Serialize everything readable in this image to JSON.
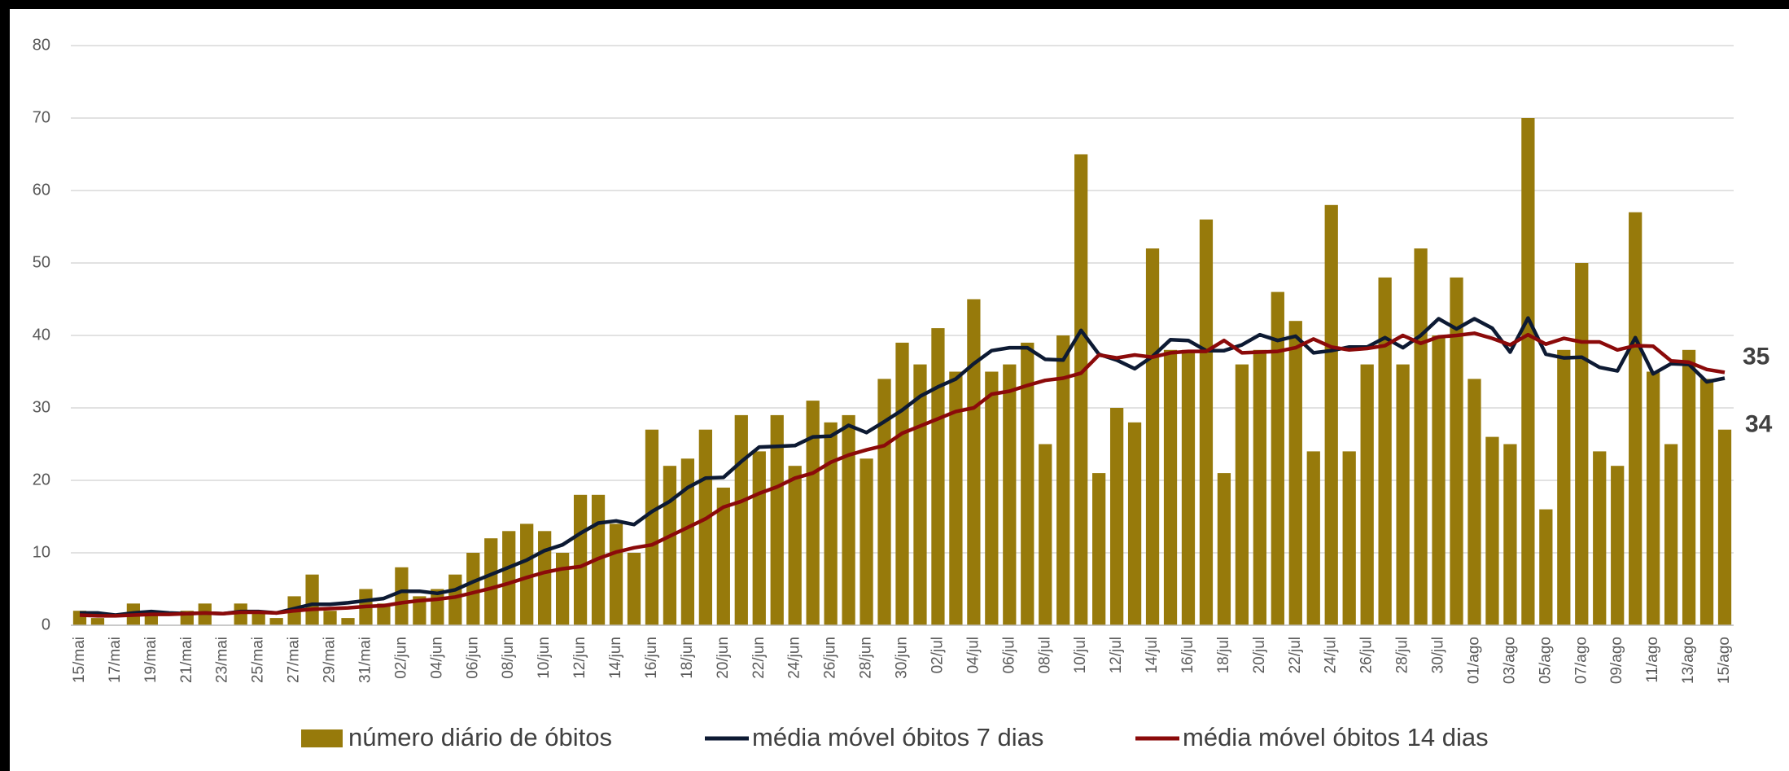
{
  "chart_data": {
    "type": "bar_line",
    "categories": [
      "15/mai",
      null,
      "17/mai",
      null,
      "19/mai",
      null,
      "21/mai",
      null,
      "23/mai",
      null,
      "25/mai",
      null,
      "27/mai",
      null,
      "29/mai",
      null,
      "31/mai",
      null,
      "02/jun",
      null,
      "04/jun",
      null,
      "06/jun",
      null,
      "08/jun",
      null,
      "10/jun",
      null,
      "12/jun",
      null,
      "14/jun",
      null,
      "16/jun",
      null,
      "18/jun",
      null,
      "20/jun",
      null,
      "22/jun",
      null,
      "24/jun",
      null,
      "26/jun",
      null,
      "28/jun",
      null,
      "30/jun",
      null,
      "02/jul",
      null,
      "04/jul",
      null,
      "06/jul",
      null,
      "08/jul",
      null,
      "10/jul",
      null,
      "12/jul",
      null,
      "14/jul",
      null,
      "16/jul",
      null,
      "18/jul",
      null,
      "20/jul",
      null,
      "22/jul",
      null,
      "24/jul",
      null,
      "26/jul",
      null,
      "28/jul",
      null,
      "30/jul",
      null,
      "01/ago",
      null,
      "03/ago",
      null,
      "05/ago",
      null,
      "07/ago",
      null,
      "09/ago",
      null,
      "11/ago",
      null,
      "13/ago",
      null,
      "15/ago"
    ],
    "series": [
      {
        "name": "número diário de óbitos",
        "type": "bar",
        "color": "#977a0b",
        "values": [
          2,
          1,
          0,
          3,
          2,
          0,
          2,
          3,
          0,
          3,
          2,
          1,
          4,
          7,
          2,
          1,
          5,
          3,
          8,
          4,
          5,
          7,
          10,
          12,
          13,
          14,
          13,
          10,
          18,
          18,
          14,
          10,
          27,
          22,
          23,
          27,
          19,
          29,
          24,
          29,
          22,
          31,
          28,
          29,
          23,
          34,
          39,
          36,
          41,
          35,
          45,
          35,
          36,
          39,
          25,
          40,
          65,
          21,
          30,
          28,
          52,
          38,
          38,
          56,
          21,
          36,
          38,
          46,
          42,
          24,
          58,
          24,
          36,
          48,
          36,
          52,
          40,
          48,
          34,
          26,
          25,
          70,
          16,
          38,
          50,
          24,
          22,
          57,
          35,
          25,
          38,
          34,
          27
        ]
      },
      {
        "name": "média móvel óbitos 7 dias",
        "type": "line",
        "color": "#0d1a33",
        "values": [
          1.7,
          1.7,
          1.4,
          1.7,
          1.9,
          1.7,
          1.6,
          1.7,
          1.6,
          1.9,
          1.9,
          1.7,
          2.3,
          2.9,
          2.9,
          3.1,
          3.4,
          3.7,
          4.7,
          4.7,
          4.4,
          4.9,
          6,
          7,
          8,
          9,
          10.3,
          11.1,
          12.7,
          14.1,
          14.4,
          13.9,
          15.7,
          17.1,
          19,
          20.3,
          20.4,
          22.6,
          24.6,
          24.7,
          24.8,
          26,
          26.1,
          27.6,
          26.6,
          28.1,
          29.7,
          31.6,
          32.9,
          34,
          36.1,
          37.9,
          38.3,
          38.3,
          36.7,
          36.6,
          40.7,
          37.4,
          36.6,
          35.4,
          37.1,
          39.4,
          39.3,
          37.9,
          37.9,
          38.7,
          40.1,
          39.3,
          39.9,
          37.6,
          37.9,
          38.4,
          38.4,
          39.7,
          38.3,
          40,
          42.3,
          40.9,
          42.3,
          41,
          37.7,
          42.4,
          37.4,
          36.9,
          37,
          35.6,
          35.1,
          39.7,
          34.7,
          36.1,
          36,
          33.6,
          34.1
        ]
      },
      {
        "name": "média móvel óbitos 14 dias",
        "type": "line",
        "color": "#8b0a0a",
        "values": [
          1.4,
          1.3,
          1.3,
          1.4,
          1.5,
          1.5,
          1.6,
          1.7,
          1.6,
          1.8,
          1.8,
          1.7,
          2,
          2.2,
          2.3,
          2.4,
          2.6,
          2.7,
          3.1,
          3.4,
          3.6,
          3.9,
          4.5,
          5.1,
          5.8,
          6.6,
          7.3,
          7.8,
          8.1,
          9.2,
          10.1,
          10.7,
          11.1,
          12.3,
          13.5,
          14.7,
          16.3,
          17.1,
          18.2,
          19.1,
          20.3,
          21,
          22.5,
          23.5,
          24.2,
          24.8,
          26.5,
          27.5,
          28.5,
          29.5,
          30,
          31.9,
          32.3,
          33.1,
          33.8,
          34.1,
          34.8,
          37.3,
          36.9,
          37.3,
          37,
          37.6,
          37.8,
          37.8,
          39.3,
          37.6,
          37.7,
          37.8,
          38.3,
          39.5,
          38.4,
          38,
          38.2,
          38.6,
          40,
          38.9,
          39.8,
          40,
          40.3,
          39.6,
          38.7,
          40.1,
          38.8,
          39.6,
          39.1,
          39.1,
          38,
          38.6,
          38.5,
          36.5,
          36.3,
          35.3,
          34.9
        ]
      }
    ],
    "annotations": [
      "35",
      "34"
    ],
    "ylim": [
      0,
      80
    ],
    "yticks": [
      0,
      10,
      20,
      30,
      40,
      50,
      60,
      70,
      80
    ],
    "grid": true
  }
}
